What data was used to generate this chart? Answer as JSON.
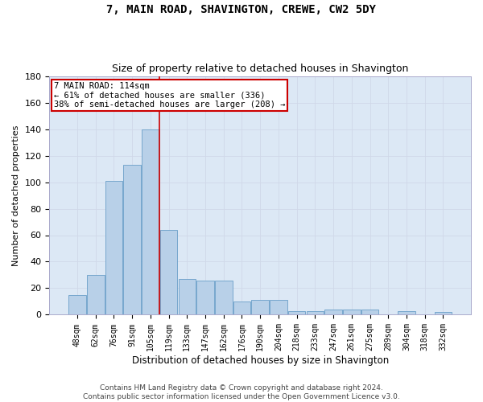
{
  "title": "7, MAIN ROAD, SHAVINGTON, CREWE, CW2 5DY",
  "subtitle": "Size of property relative to detached houses in Shavington",
  "xlabel": "Distribution of detached houses by size in Shavington",
  "ylabel": "Number of detached properties",
  "categories": [
    "48sqm",
    "62sqm",
    "76sqm",
    "91sqm",
    "105sqm",
    "119sqm",
    "133sqm",
    "147sqm",
    "162sqm",
    "176sqm",
    "190sqm",
    "204sqm",
    "218sqm",
    "233sqm",
    "247sqm",
    "261sqm",
    "275sqm",
    "289sqm",
    "304sqm",
    "318sqm",
    "332sqm"
  ],
  "values": [
    15,
    30,
    101,
    113,
    140,
    64,
    27,
    26,
    26,
    10,
    11,
    11,
    3,
    3,
    4,
    4,
    4,
    0,
    3,
    0,
    2
  ],
  "bar_color": "#b8d0e8",
  "bar_edge_color": "#6a9fc8",
  "grid_color": "#d0d8e8",
  "plot_bg_color": "#dce8f5",
  "background_color": "#ffffff",
  "annotation_text_line1": "7 MAIN ROAD: 114sqm",
  "annotation_text_line2": "← 61% of detached houses are smaller (336)",
  "annotation_text_line3": "38% of semi-detached houses are larger (208) →",
  "annotation_box_color": "#ffffff",
  "annotation_border_color": "#cc0000",
  "vline_color": "#cc0000",
  "footer_line1": "Contains HM Land Registry data © Crown copyright and database right 2024.",
  "footer_line2": "Contains public sector information licensed under the Open Government Licence v3.0.",
  "ylim": [
    0,
    180
  ],
  "yticks": [
    0,
    20,
    40,
    60,
    80,
    100,
    120,
    140,
    160,
    180
  ],
  "vline_x_index": 4.5
}
